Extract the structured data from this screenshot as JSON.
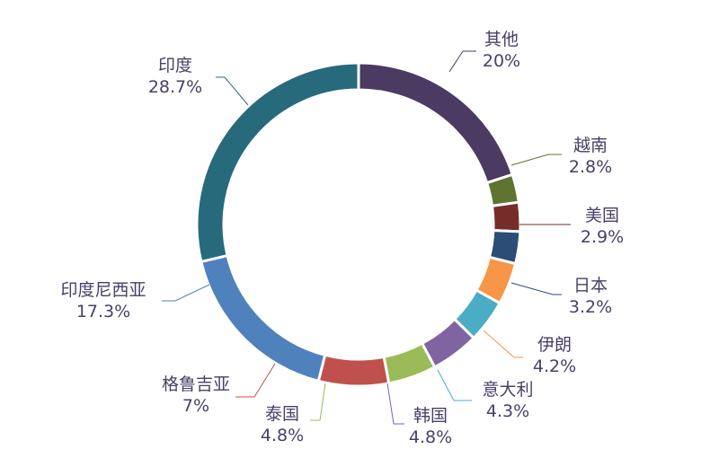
{
  "chart_data": {
    "type": "pie",
    "donut": true,
    "title": "",
    "start_category": "其他",
    "direction": "clockwise",
    "slices": [
      {
        "label": "其他",
        "value": 20.0,
        "display": "20%",
        "color": "#4b3a62"
      },
      {
        "label": "越南",
        "value": 2.8,
        "display": "2.8%",
        "color": "#5e7430"
      },
      {
        "label": "美国",
        "value": 2.9,
        "display": "2.9%",
        "color": "#772c2a"
      },
      {
        "label": "日本",
        "value": 3.2,
        "display": "3.2%",
        "color": "#2c4d75"
      },
      {
        "label": "伊朗",
        "value": 4.2,
        "display": "4.2%",
        "color": "#f79646"
      },
      {
        "label": "意大利",
        "value": 4.3,
        "display": "4.3%",
        "color": "#4bacc6"
      },
      {
        "label": "韩国",
        "value": 4.8,
        "display": "4.8%",
        "color": "#8064a2"
      },
      {
        "label": "泰国",
        "value": 4.8,
        "display": "4.8%",
        "color": "#9bbb59"
      },
      {
        "label": "格鲁吉亚",
        "value": 7.0,
        "display": "7%",
        "color": "#c0504d"
      },
      {
        "label": "印度尼西亚",
        "value": 17.3,
        "display": "17.3%",
        "color": "#4f81bd"
      },
      {
        "label": "印度",
        "value": 28.7,
        "display": "28.7%",
        "color": "#276a7c"
      }
    ]
  }
}
